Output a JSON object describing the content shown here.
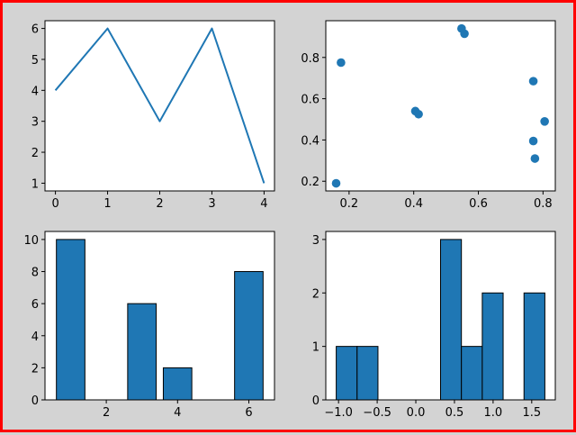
{
  "colors": {
    "series": "#1f77b4",
    "border": "#ff0000",
    "background": "#d3d3d3",
    "edge": "#000000"
  },
  "chart_data": [
    {
      "type": "line",
      "title": "",
      "xlabel": "",
      "ylabel": "",
      "x": [
        0,
        1,
        2,
        3,
        4
      ],
      "y": [
        4,
        6,
        3,
        6,
        1
      ],
      "xlim": [
        -0.2,
        4.2
      ],
      "ylim": [
        0.75,
        6.25
      ],
      "xticks": [
        0,
        1,
        2,
        3,
        4
      ],
      "xtick_labels": [
        "0",
        "1",
        "2",
        "3",
        "4"
      ],
      "yticks": [
        1,
        2,
        3,
        4,
        5,
        6
      ],
      "ytick_labels": [
        "1",
        "2",
        "3",
        "4",
        "5",
        "6"
      ],
      "grid": false
    },
    {
      "type": "scatter",
      "title": "",
      "xlabel": "",
      "ylabel": "",
      "points": [
        {
          "x": 0.16,
          "y": 0.19
        },
        {
          "x": 0.175,
          "y": 0.775
        },
        {
          "x": 0.405,
          "y": 0.54
        },
        {
          "x": 0.415,
          "y": 0.525
        },
        {
          "x": 0.548,
          "y": 0.94
        },
        {
          "x": 0.557,
          "y": 0.915
        },
        {
          "x": 0.77,
          "y": 0.685
        },
        {
          "x": 0.77,
          "y": 0.395
        },
        {
          "x": 0.775,
          "y": 0.31
        },
        {
          "x": 0.805,
          "y": 0.49
        }
      ],
      "xlim": [
        0.128,
        0.838
      ],
      "ylim": [
        0.153,
        0.978
      ],
      "xticks": [
        0.2,
        0.4,
        0.6,
        0.8
      ],
      "xtick_labels": [
        "0.2",
        "0.4",
        "0.6",
        "0.8"
      ],
      "yticks": [
        0.2,
        0.4,
        0.6,
        0.8
      ],
      "ytick_labels": [
        "0.2",
        "0.4",
        "0.6",
        "0.8"
      ],
      "grid": false
    },
    {
      "type": "bar",
      "title": "",
      "xlabel": "",
      "ylabel": "",
      "categories": [
        1,
        2,
        3,
        4,
        5,
        6
      ],
      "values": [
        10,
        0,
        6,
        2,
        0,
        8
      ],
      "bar_width": 0.8,
      "xlim": [
        0.28,
        6.72
      ],
      "ylim": [
        0,
        10.5
      ],
      "xticks": [
        2,
        4,
        6
      ],
      "xtick_labels": [
        "2",
        "4",
        "6"
      ],
      "yticks": [
        0,
        2,
        4,
        6,
        8,
        10
      ],
      "ytick_labels": [
        "0",
        "2",
        "4",
        "6",
        "8",
        "10"
      ],
      "grid": false
    },
    {
      "type": "bar",
      "subtype": "histogram",
      "title": "",
      "xlabel": "",
      "ylabel": "",
      "bins": [
        {
          "start": -1.03,
          "end": -0.76,
          "count": 1
        },
        {
          "start": -0.76,
          "end": -0.49,
          "count": 1
        },
        {
          "start": -0.49,
          "end": -0.22,
          "count": 0
        },
        {
          "start": -0.22,
          "end": 0.05,
          "count": 0
        },
        {
          "start": 0.05,
          "end": 0.32,
          "count": 0
        },
        {
          "start": 0.32,
          "end": 0.59,
          "count": 3
        },
        {
          "start": 0.59,
          "end": 0.86,
          "count": 1
        },
        {
          "start": 0.86,
          "end": 1.13,
          "count": 2
        },
        {
          "start": 1.13,
          "end": 1.4,
          "count": 0
        },
        {
          "start": 1.4,
          "end": 1.67,
          "count": 2
        }
      ],
      "xlim": [
        -1.165,
        1.805
      ],
      "ylim": [
        0,
        3.15
      ],
      "xticks": [
        -1.0,
        -0.5,
        0.0,
        0.5,
        1.0,
        1.5
      ],
      "xtick_labels": [
        "−1.0",
        "−0.5",
        "0.0",
        "0.5",
        "1.0",
        "1.5"
      ],
      "yticks": [
        0,
        1,
        2,
        3
      ],
      "ytick_labels": [
        "0",
        "1",
        "2",
        "3"
      ],
      "grid": false
    }
  ]
}
